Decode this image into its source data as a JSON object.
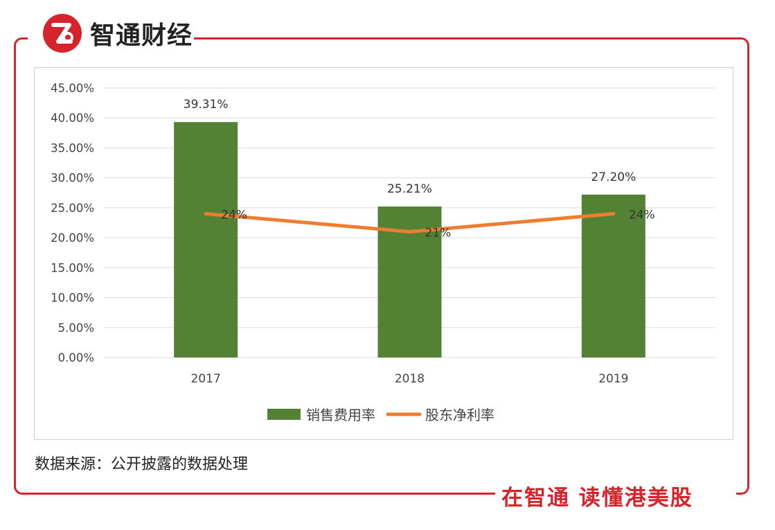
{
  "brand": {
    "name": "智通财经",
    "slogan": "在智通 读懂港美股"
  },
  "source_note": "数据来源：公开披露的数据处理",
  "colors": {
    "bar": "#548235",
    "line": "#ED7D31",
    "frame": "#d7232b"
  },
  "chart_data": {
    "type": "bar",
    "categories": [
      "2017",
      "2018",
      "2019"
    ],
    "series": [
      {
        "name": "销售费用率",
        "type": "bar",
        "values": [
          39.31,
          25.21,
          27.2
        ],
        "labels": [
          "39.31%",
          "25.21%",
          "27.20%"
        ]
      },
      {
        "name": "股东净利率",
        "type": "line",
        "values": [
          24,
          21,
          24
        ],
        "labels": [
          "24%",
          "21%",
          "24%"
        ]
      }
    ],
    "ylim": [
      0,
      45
    ],
    "yticks": [
      "0.00%",
      "5.00%",
      "10.00%",
      "15.00%",
      "20.00%",
      "25.00%",
      "30.00%",
      "35.00%",
      "40.00%",
      "45.00%"
    ],
    "grid": true,
    "legend": "bottom"
  }
}
